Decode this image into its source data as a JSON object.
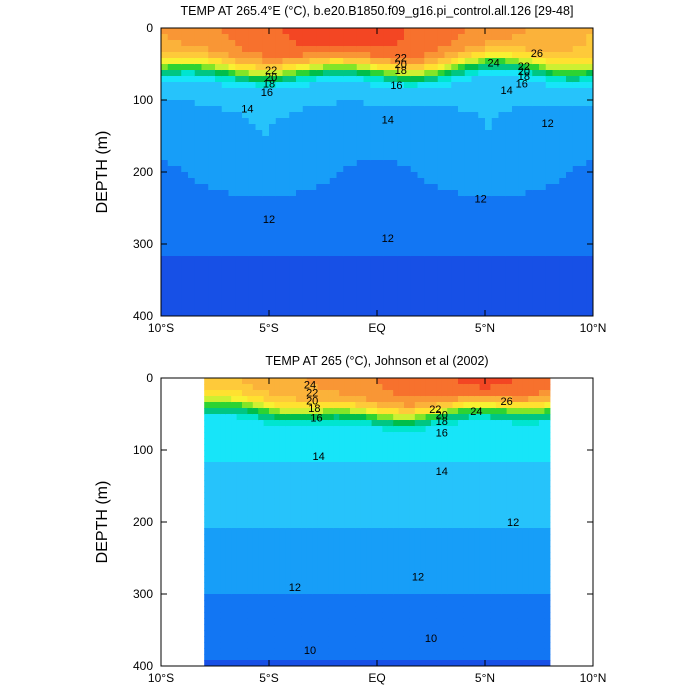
{
  "chart_data": [
    {
      "type": "heatmap",
      "subtype": "filled-contour",
      "title": "TEMP AT 265.4°E (°C), b.e20.B1850.f09_g16.pi_control.all.126 [29-48]",
      "ylabel": "DEPTH (m)",
      "xlabel": "",
      "xlim": [
        -10,
        10
      ],
      "ylim": [
        400,
        0
      ],
      "x_ticks": [
        -10,
        -5,
        0,
        5,
        10
      ],
      "x_tick_labels": [
        "10°S",
        "5°S",
        "EQ",
        "5°N",
        "10°N"
      ],
      "y_ticks": [
        0,
        100,
        200,
        300,
        400
      ],
      "y_tick_labels": [
        "0",
        "100",
        "200",
        "300",
        "400"
      ],
      "data_extent_x": [
        -10,
        10
      ],
      "contour_interval": 1,
      "contour_labels": [
        {
          "text": "22",
          "x": -4.9,
          "y": 58
        },
        {
          "text": "20",
          "x": -4.9,
          "y": 68
        },
        {
          "text": "18",
          "x": -5.0,
          "y": 77
        },
        {
          "text": "16",
          "x": -5.1,
          "y": 89
        },
        {
          "text": "14",
          "x": -6.0,
          "y": 112
        },
        {
          "text": "22",
          "x": 1.1,
          "y": 41
        },
        {
          "text": "20",
          "x": 1.1,
          "y": 50
        },
        {
          "text": "18",
          "x": 1.1,
          "y": 58
        },
        {
          "text": "16",
          "x": 0.9,
          "y": 79
        },
        {
          "text": "14",
          "x": 0.5,
          "y": 127
        },
        {
          "text": "24",
          "x": 5.4,
          "y": 48
        },
        {
          "text": "26",
          "x": 7.4,
          "y": 35
        },
        {
          "text": "22",
          "x": 6.8,
          "y": 53
        },
        {
          "text": "20",
          "x": 6.8,
          "y": 60
        },
        {
          "text": "18",
          "x": 6.8,
          "y": 67
        },
        {
          "text": "16",
          "x": 6.7,
          "y": 77
        },
        {
          "text": "14",
          "x": 6.0,
          "y": 86
        },
        {
          "text": "12",
          "x": 7.9,
          "y": 132
        },
        {
          "text": "12",
          "x": 4.8,
          "y": 237
        },
        {
          "text": "12",
          "x": -5.0,
          "y": 265
        },
        {
          "text": "12",
          "x": 0.5,
          "y": 292
        }
      ]
    },
    {
      "type": "heatmap",
      "subtype": "filled-contour",
      "title": "TEMP AT 265 (°C), Johnson et al (2002)",
      "ylabel": "DEPTH (m)",
      "xlabel": "",
      "xlim": [
        -10,
        10
      ],
      "ylim": [
        400,
        0
      ],
      "x_ticks": [
        -10,
        -5,
        0,
        5,
        10
      ],
      "x_tick_labels": [
        "10°S",
        "5°S",
        "EQ",
        "5°N",
        "10°N"
      ],
      "y_ticks": [
        0,
        100,
        200,
        300,
        400
      ],
      "y_tick_labels": [
        "0",
        "100",
        "200",
        "300",
        "400"
      ],
      "data_extent_x": [
        -8,
        8
      ],
      "contour_interval": 1,
      "contour_labels": [
        {
          "text": "24",
          "x": -3.1,
          "y": 9
        },
        {
          "text": "22",
          "x": -3.0,
          "y": 20
        },
        {
          "text": "20",
          "x": -3.0,
          "y": 31
        },
        {
          "text": "18",
          "x": -2.9,
          "y": 42
        },
        {
          "text": "16",
          "x": -2.8,
          "y": 55
        },
        {
          "text": "22",
          "x": 2.7,
          "y": 43
        },
        {
          "text": "20",
          "x": 3.0,
          "y": 51
        },
        {
          "text": "18",
          "x": 3.0,
          "y": 60
        },
        {
          "text": "16",
          "x": 3.0,
          "y": 76
        },
        {
          "text": "24",
          "x": 4.6,
          "y": 46
        },
        {
          "text": "26",
          "x": 6.0,
          "y": 32
        },
        {
          "text": "14",
          "x": -2.7,
          "y": 108
        },
        {
          "text": "14",
          "x": 3.0,
          "y": 129
        },
        {
          "text": "12",
          "x": 6.3,
          "y": 200
        },
        {
          "text": "12",
          "x": 1.9,
          "y": 276
        },
        {
          "text": "12",
          "x": -3.8,
          "y": 290
        },
        {
          "text": "10",
          "x": -3.1,
          "y": 378
        },
        {
          "text": "10",
          "x": 2.5,
          "y": 361
        }
      ]
    }
  ]
}
